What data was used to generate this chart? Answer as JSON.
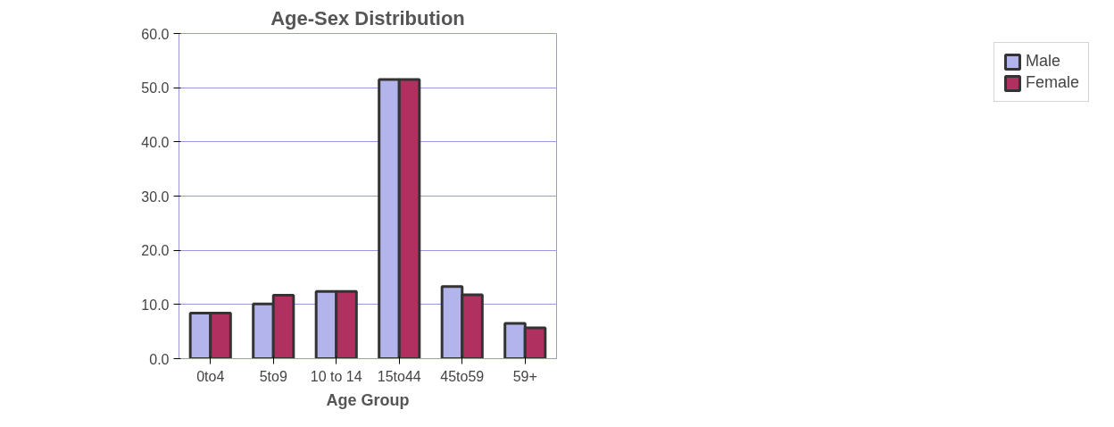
{
  "chart_data": {
    "type": "bar",
    "title": "Age-Sex Distribution",
    "xlabel": "Age Group",
    "categories": [
      "0to4",
      "5to9",
      "10 to 14",
      "15to44",
      "45to59",
      "59+"
    ],
    "series": [
      {
        "name": "Male",
        "color": "#b4b4ec",
        "values": [
          8.4,
          10.1,
          12.4,
          51.5,
          13.3,
          6.5
        ]
      },
      {
        "name": "Female",
        "color": "#b03060",
        "values": [
          8.4,
          11.7,
          12.4,
          51.5,
          11.8,
          5.7
        ]
      }
    ],
    "ylim": [
      0,
      60
    ],
    "yticks": [
      {
        "value": 0,
        "label": "0.0"
      },
      {
        "value": 10,
        "label": "10.0"
      },
      {
        "value": 20,
        "label": "20.0"
      },
      {
        "value": 30,
        "label": "30.0"
      },
      {
        "value": 40,
        "label": "40.0"
      },
      {
        "value": 50,
        "label": "50.0"
      },
      {
        "value": 60,
        "label": "60.0"
      }
    ],
    "grid": "y",
    "legend": "right"
  }
}
